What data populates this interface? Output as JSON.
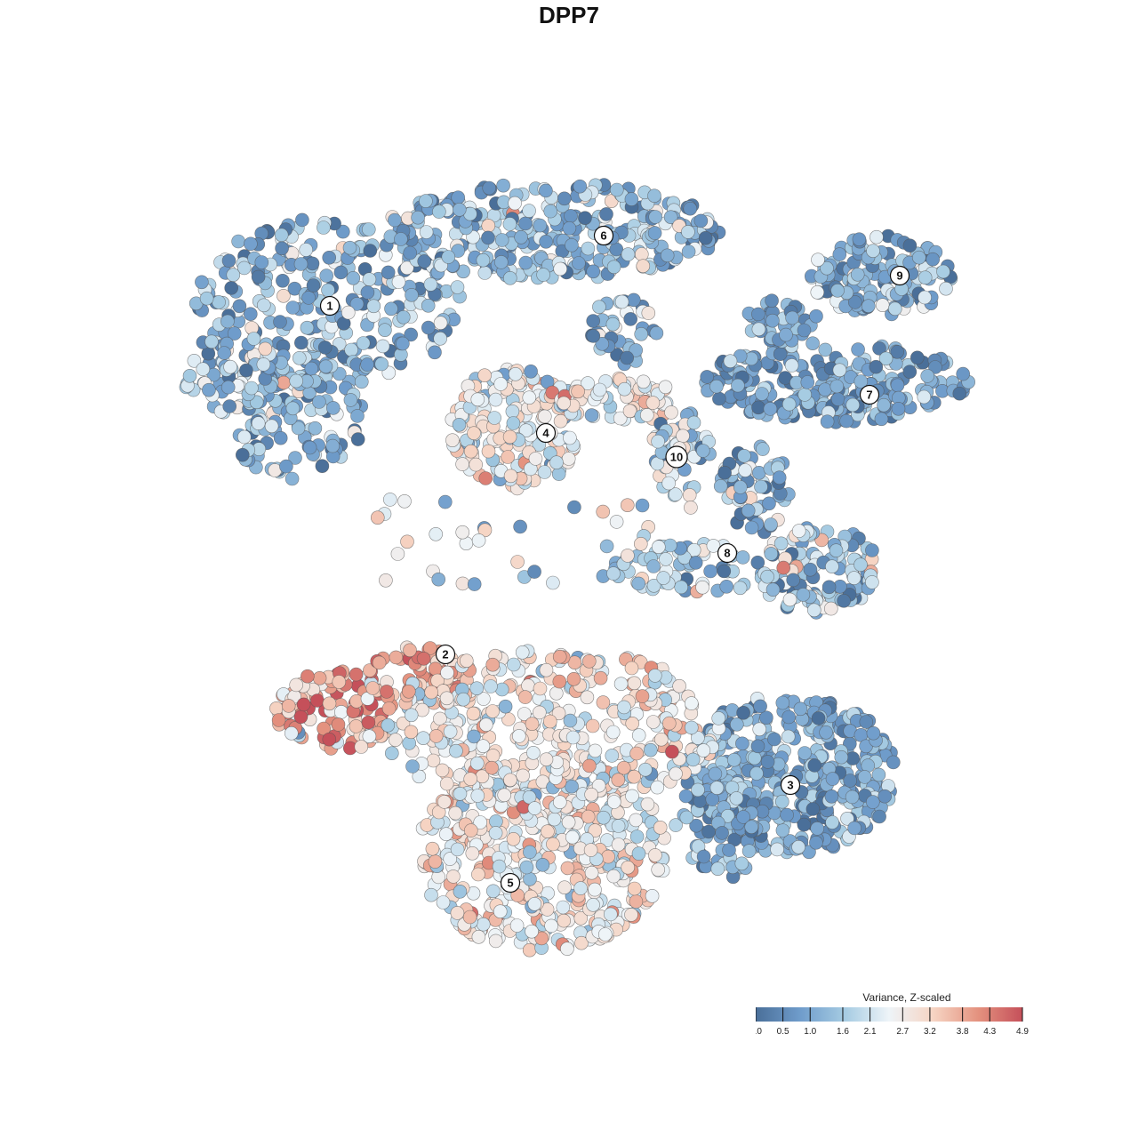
{
  "chart_data": {
    "type": "scatter",
    "title": "DPP7",
    "xlabel": "",
    "ylabel": "",
    "grid": false,
    "legend": {
      "title": "Variance, Z-scaled",
      "placement": "bottom-right",
      "range": [
        0.0,
        4.9
      ],
      "tick_values": [
        0.0,
        0.5,
        1.0,
        1.6,
        2.1,
        2.7,
        3.2,
        3.8,
        4.3,
        4.9
      ],
      "tick_labels": [
        "0.0",
        "0.5",
        "1.0",
        "1.6",
        "2.1",
        "2.7",
        "3.2",
        "3.8",
        "4.3",
        "4.9"
      ],
      "colors": [
        "#4a6f99",
        "#6f9ccb",
        "#a5cbe2",
        "#eef4f8",
        "#f6d4c3",
        "#e4927f",
        "#c5505a"
      ]
    },
    "clusters": [
      {
        "id": "1",
        "label": "1",
        "mean_value": 1.2,
        "spread": 0.8
      },
      {
        "id": "2",
        "label": "2",
        "mean_value": 3.8,
        "spread": 0.8
      },
      {
        "id": "3",
        "label": "3",
        "mean_value": 1.0,
        "spread": 0.6
      },
      {
        "id": "4",
        "label": "4",
        "mean_value": 2.5,
        "spread": 0.7
      },
      {
        "id": "5",
        "label": "5",
        "mean_value": 2.7,
        "spread": 0.7
      },
      {
        "id": "6",
        "label": "6",
        "mean_value": 1.3,
        "spread": 0.8
      },
      {
        "id": "7",
        "label": "7",
        "mean_value": 0.9,
        "spread": 0.6
      },
      {
        "id": "8",
        "label": "8",
        "mean_value": 1.4,
        "spread": 0.9
      },
      {
        "id": "9",
        "label": "9",
        "mean_value": 1.2,
        "spread": 0.7
      },
      {
        "id": "10",
        "label": "10",
        "mean_value": 1.8,
        "spread": 0.8
      }
    ]
  }
}
